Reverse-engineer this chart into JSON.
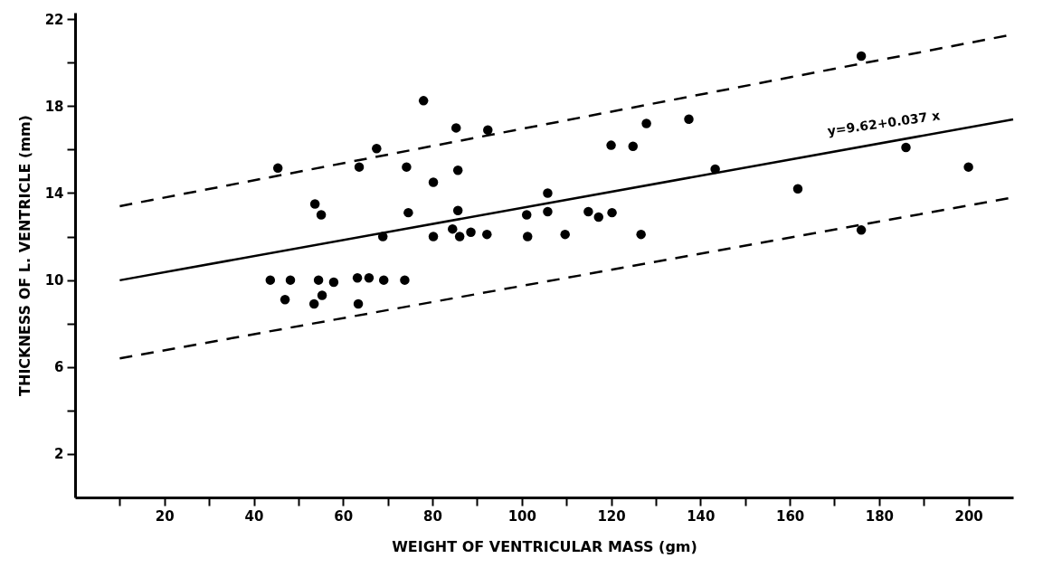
{
  "chart_data": {
    "type": "scatter",
    "xlabel": "WEIGHT OF VENTRICULAR MASS (gm)",
    "ylabel": "THICKNESS OF L. VENTRICLE (mm)",
    "xlim": [
      0,
      210
    ],
    "ylim": [
      0,
      22.3
    ],
    "xticks": [
      {
        "value": 10,
        "label": null
      },
      20,
      {
        "value": 30,
        "label": null
      },
      40,
      {
        "value": 50,
        "label": null
      },
      60,
      {
        "value": 70,
        "label": null
      },
      80,
      {
        "value": 90,
        "label": null
      },
      100,
      {
        "value": 110,
        "label": null
      },
      120,
      {
        "value": 130,
        "label": null
      },
      140,
      {
        "value": 150,
        "label": null
      },
      160,
      {
        "value": 170,
        "label": null
      },
      180,
      {
        "value": 190,
        "label": null
      },
      200
    ],
    "yticks": [
      2,
      {
        "value": 4,
        "label": null
      },
      6,
      {
        "value": 8,
        "label": null
      },
      10,
      {
        "value": 12,
        "label": null
      },
      14,
      {
        "value": 16,
        "label": null
      },
      18,
      {
        "value": 20,
        "label": null
      },
      22
    ],
    "grid": false,
    "annotations": [
      "y=9.62+0.037 x"
    ],
    "series": [
      {
        "color": "#000000",
        "x": [
          45.4,
          53.7,
          55.1,
          43.7,
          48.2,
          54.5,
          57.9,
          47.0,
          55.3,
          53.5,
          63.2,
          65.8,
          69.1,
          73.8,
          63.4,
          67.5,
          63.6,
          74.2,
          78.0,
          85.3,
          92.4,
          85.7,
          80.2,
          74.6,
          85.7,
          68.9,
          80.2,
          84.5,
          86.1,
          88.6,
          92.2,
          101.1,
          101.3,
          105.8,
          105.8,
          109.7,
          114.9,
          117.2,
          120.2,
          126.7,
          120.0,
          124.9,
          127.9,
          137.4,
          143.3,
          161.8,
          176.0,
          176.0,
          186.0,
          200.0
        ],
        "values": [
          15.15,
          13.5,
          13.0,
          10.0,
          10.0,
          10.0,
          9.9,
          9.1,
          9.3,
          8.9,
          10.1,
          10.1,
          10.0,
          10.0,
          8.9,
          16.05,
          15.2,
          15.2,
          18.25,
          17.0,
          16.9,
          15.05,
          14.5,
          13.1,
          13.2,
          12.0,
          12.0,
          12.35,
          12.0,
          12.2,
          12.1,
          13.0,
          12.0,
          14.0,
          13.15,
          12.1,
          13.15,
          12.9,
          13.1,
          12.1,
          16.2,
          16.15,
          17.2,
          17.4,
          15.1,
          14.2,
          12.3,
          20.3,
          16.1,
          15.2
        ]
      },
      {
        "type": "line",
        "color": "#000000",
        "line_style": "solid",
        "x": [
          10,
          210
        ],
        "values": [
          9.99,
          17.39
        ]
      },
      {
        "type": "line",
        "color": "#000000",
        "line_style": "dashed",
        "x": [
          10,
          210
        ],
        "values": [
          13.4,
          21.3
        ]
      },
      {
        "type": "line",
        "color": "#000000",
        "line_style": "dashed",
        "x": [
          10,
          210
        ],
        "values": [
          6.4,
          13.8
        ]
      }
    ]
  }
}
